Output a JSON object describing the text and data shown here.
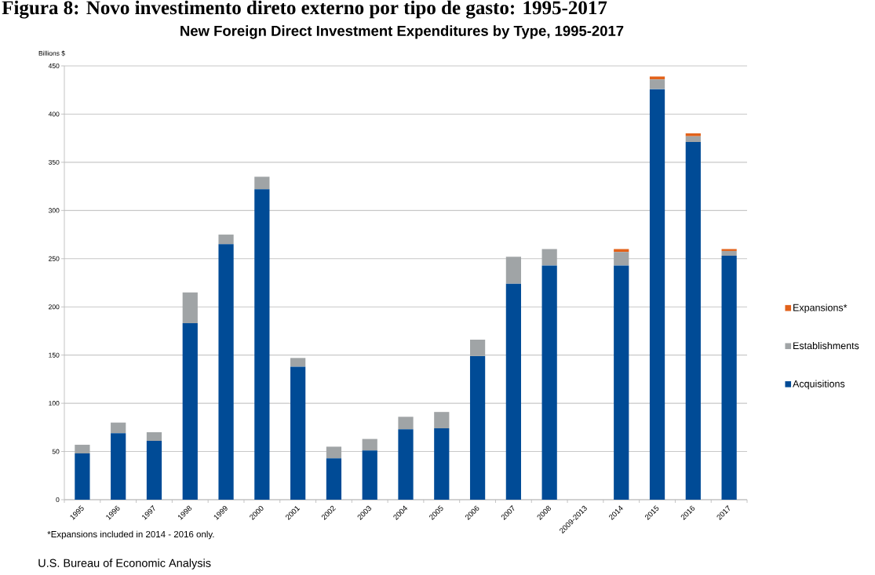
{
  "chart_data": {
    "type": "bar",
    "stacked": true,
    "title": "New Foreign Direct Investment Expenditures by Type, 1995-2017",
    "ylabel": "Billions $",
    "annotations": [
      "Figura 8: Novo investimento direto externo por tipo de gasto: 1995-2017",
      "*Expansions included in 2014 - 2016 only.",
      "U.S. Bureau of Economic Analysis"
    ],
    "categories": [
      "1995",
      "1996",
      "1997",
      "1998",
      "1999",
      "2000",
      "2001",
      "2002",
      "2003",
      "2004",
      "2005",
      "2006",
      "2007",
      "2008",
      "2009-2013",
      "2014",
      "2015",
      "2016",
      "2017"
    ],
    "series": [
      {
        "name": "Acquisitions",
        "color": "#004b96",
        "values": [
          48,
          69,
          61,
          183,
          265,
          322,
          138,
          43,
          51,
          73,
          74,
          149,
          224,
          243,
          null,
          243,
          426,
          371,
          253
        ]
      },
      {
        "name": "Establishments",
        "color": "#a0a4a6",
        "values": [
          9,
          11,
          9,
          32,
          10,
          13,
          9,
          12,
          12,
          13,
          17,
          17,
          28,
          17,
          null,
          14,
          10,
          6,
          5
        ]
      },
      {
        "name": "Expansions*",
        "color": "#e2621b",
        "values": [
          null,
          null,
          null,
          null,
          null,
          null,
          null,
          null,
          null,
          null,
          null,
          null,
          null,
          null,
          null,
          3,
          3,
          3,
          2
        ]
      }
    ],
    "ylim": [
      0,
      450
    ],
    "yticks": [
      0,
      50,
      100,
      150,
      200,
      250,
      300,
      350,
      400,
      450
    ],
    "grid": "y",
    "legend": "right"
  }
}
